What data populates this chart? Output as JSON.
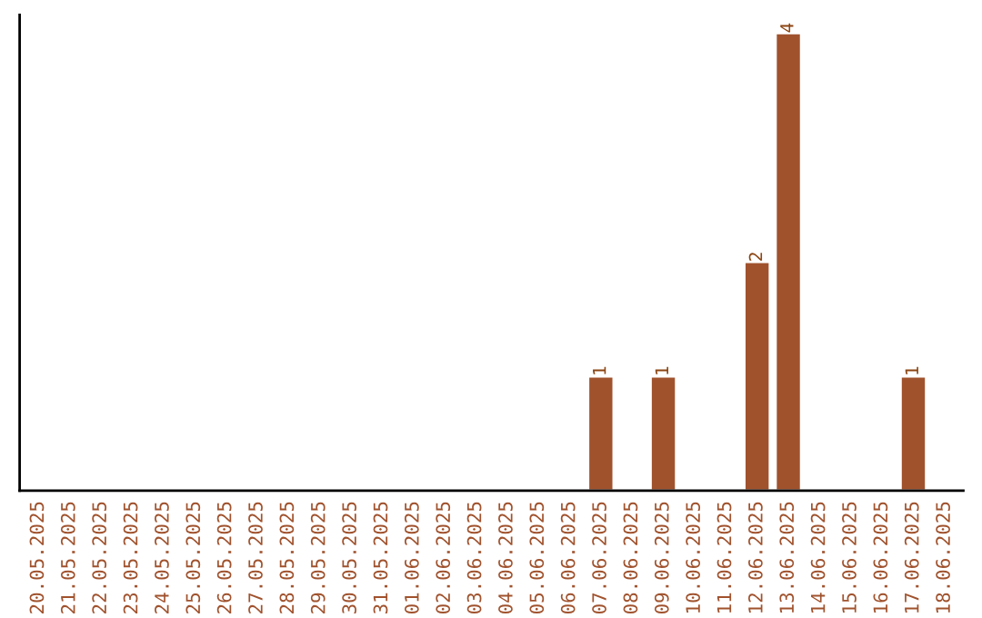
{
  "chart_data": {
    "type": "bar",
    "categories": [
      "20.05.2025",
      "21.05.2025",
      "22.05.2025",
      "23.05.2025",
      "24.05.2025",
      "25.05.2025",
      "26.05.2025",
      "27.05.2025",
      "28.05.2025",
      "29.05.2025",
      "30.05.2025",
      "31.05.2025",
      "01.06.2025",
      "02.06.2025",
      "03.06.2025",
      "04.06.2025",
      "05.06.2025",
      "06.06.2025",
      "07.06.2025",
      "08.06.2025",
      "09.06.2025",
      "10.06.2025",
      "11.06.2025",
      "12.06.2025",
      "13.06.2025",
      "14.06.2025",
      "15.06.2025",
      "16.06.2025",
      "17.06.2025",
      "18.06.2025"
    ],
    "values": [
      null,
      null,
      null,
      null,
      null,
      null,
      null,
      null,
      null,
      null,
      null,
      null,
      null,
      null,
      null,
      null,
      null,
      null,
      1,
      null,
      1,
      null,
      null,
      2,
      4,
      null,
      null,
      null,
      1,
      null
    ],
    "data_labels": true,
    "color": "#a0522d",
    "grid": false
  }
}
